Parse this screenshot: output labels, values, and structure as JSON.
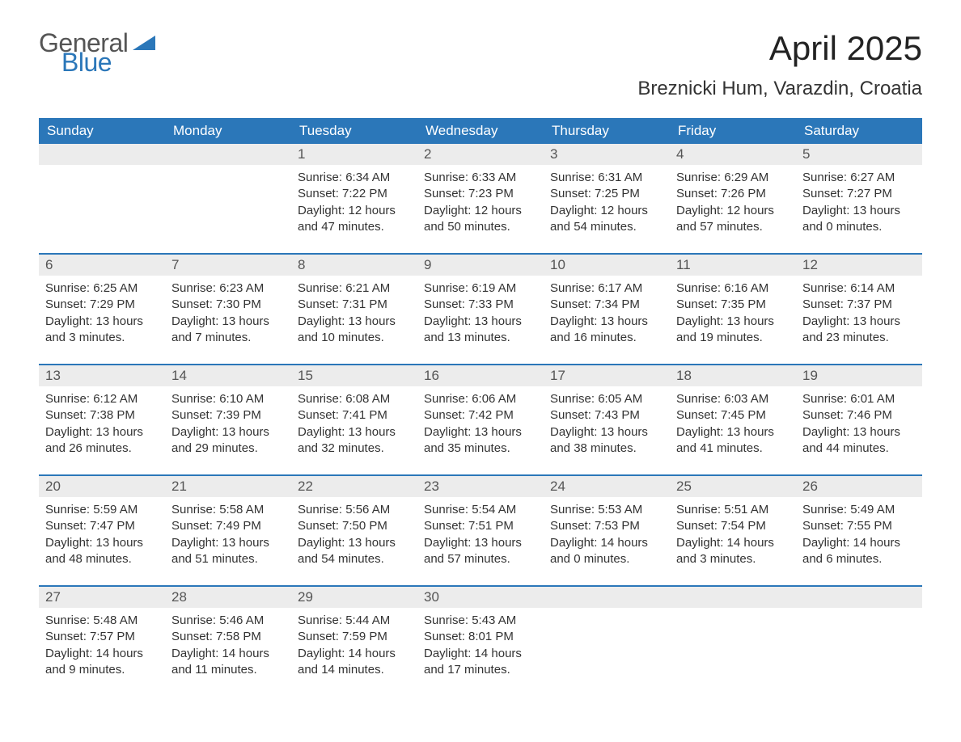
{
  "brand": {
    "word1": "General",
    "word2": "Blue"
  },
  "title": "April 2025",
  "location": "Breznicki Hum, Varazdin, Croatia",
  "colors": {
    "header_bg": "#2b77b9",
    "header_text": "#ffffff",
    "daynum_bg": "#ececec",
    "border_top": "#2b77b9",
    "body_text": "#333333",
    "title_text": "#222222",
    "brand_gray": "#555555",
    "brand_blue": "#2b77b9",
    "page_bg": "#ffffff"
  },
  "typography": {
    "title_fontsize": 42,
    "location_fontsize": 24,
    "dayheader_fontsize": 17,
    "daynum_fontsize": 17,
    "cell_fontsize": 15,
    "logo_fontsize": 32
  },
  "day_headers": [
    "Sunday",
    "Monday",
    "Tuesday",
    "Wednesday",
    "Thursday",
    "Friday",
    "Saturday"
  ],
  "weeks": [
    [
      {
        "n": "",
        "sunrise": "",
        "sunset": "",
        "daylight": ""
      },
      {
        "n": "",
        "sunrise": "",
        "sunset": "",
        "daylight": ""
      },
      {
        "n": "1",
        "sunrise": "Sunrise: 6:34 AM",
        "sunset": "Sunset: 7:22 PM",
        "daylight": "Daylight: 12 hours and 47 minutes."
      },
      {
        "n": "2",
        "sunrise": "Sunrise: 6:33 AM",
        "sunset": "Sunset: 7:23 PM",
        "daylight": "Daylight: 12 hours and 50 minutes."
      },
      {
        "n": "3",
        "sunrise": "Sunrise: 6:31 AM",
        "sunset": "Sunset: 7:25 PM",
        "daylight": "Daylight: 12 hours and 54 minutes."
      },
      {
        "n": "4",
        "sunrise": "Sunrise: 6:29 AM",
        "sunset": "Sunset: 7:26 PM",
        "daylight": "Daylight: 12 hours and 57 minutes."
      },
      {
        "n": "5",
        "sunrise": "Sunrise: 6:27 AM",
        "sunset": "Sunset: 7:27 PM",
        "daylight": "Daylight: 13 hours and 0 minutes."
      }
    ],
    [
      {
        "n": "6",
        "sunrise": "Sunrise: 6:25 AM",
        "sunset": "Sunset: 7:29 PM",
        "daylight": "Daylight: 13 hours and 3 minutes."
      },
      {
        "n": "7",
        "sunrise": "Sunrise: 6:23 AM",
        "sunset": "Sunset: 7:30 PM",
        "daylight": "Daylight: 13 hours and 7 minutes."
      },
      {
        "n": "8",
        "sunrise": "Sunrise: 6:21 AM",
        "sunset": "Sunset: 7:31 PM",
        "daylight": "Daylight: 13 hours and 10 minutes."
      },
      {
        "n": "9",
        "sunrise": "Sunrise: 6:19 AM",
        "sunset": "Sunset: 7:33 PM",
        "daylight": "Daylight: 13 hours and 13 minutes."
      },
      {
        "n": "10",
        "sunrise": "Sunrise: 6:17 AM",
        "sunset": "Sunset: 7:34 PM",
        "daylight": "Daylight: 13 hours and 16 minutes."
      },
      {
        "n": "11",
        "sunrise": "Sunrise: 6:16 AM",
        "sunset": "Sunset: 7:35 PM",
        "daylight": "Daylight: 13 hours and 19 minutes."
      },
      {
        "n": "12",
        "sunrise": "Sunrise: 6:14 AM",
        "sunset": "Sunset: 7:37 PM",
        "daylight": "Daylight: 13 hours and 23 minutes."
      }
    ],
    [
      {
        "n": "13",
        "sunrise": "Sunrise: 6:12 AM",
        "sunset": "Sunset: 7:38 PM",
        "daylight": "Daylight: 13 hours and 26 minutes."
      },
      {
        "n": "14",
        "sunrise": "Sunrise: 6:10 AM",
        "sunset": "Sunset: 7:39 PM",
        "daylight": "Daylight: 13 hours and 29 minutes."
      },
      {
        "n": "15",
        "sunrise": "Sunrise: 6:08 AM",
        "sunset": "Sunset: 7:41 PM",
        "daylight": "Daylight: 13 hours and 32 minutes."
      },
      {
        "n": "16",
        "sunrise": "Sunrise: 6:06 AM",
        "sunset": "Sunset: 7:42 PM",
        "daylight": "Daylight: 13 hours and 35 minutes."
      },
      {
        "n": "17",
        "sunrise": "Sunrise: 6:05 AM",
        "sunset": "Sunset: 7:43 PM",
        "daylight": "Daylight: 13 hours and 38 minutes."
      },
      {
        "n": "18",
        "sunrise": "Sunrise: 6:03 AM",
        "sunset": "Sunset: 7:45 PM",
        "daylight": "Daylight: 13 hours and 41 minutes."
      },
      {
        "n": "19",
        "sunrise": "Sunrise: 6:01 AM",
        "sunset": "Sunset: 7:46 PM",
        "daylight": "Daylight: 13 hours and 44 minutes."
      }
    ],
    [
      {
        "n": "20",
        "sunrise": "Sunrise: 5:59 AM",
        "sunset": "Sunset: 7:47 PM",
        "daylight": "Daylight: 13 hours and 48 minutes."
      },
      {
        "n": "21",
        "sunrise": "Sunrise: 5:58 AM",
        "sunset": "Sunset: 7:49 PM",
        "daylight": "Daylight: 13 hours and 51 minutes."
      },
      {
        "n": "22",
        "sunrise": "Sunrise: 5:56 AM",
        "sunset": "Sunset: 7:50 PM",
        "daylight": "Daylight: 13 hours and 54 minutes."
      },
      {
        "n": "23",
        "sunrise": "Sunrise: 5:54 AM",
        "sunset": "Sunset: 7:51 PM",
        "daylight": "Daylight: 13 hours and 57 minutes."
      },
      {
        "n": "24",
        "sunrise": "Sunrise: 5:53 AM",
        "sunset": "Sunset: 7:53 PM",
        "daylight": "Daylight: 14 hours and 0 minutes."
      },
      {
        "n": "25",
        "sunrise": "Sunrise: 5:51 AM",
        "sunset": "Sunset: 7:54 PM",
        "daylight": "Daylight: 14 hours and 3 minutes."
      },
      {
        "n": "26",
        "sunrise": "Sunrise: 5:49 AM",
        "sunset": "Sunset: 7:55 PM",
        "daylight": "Daylight: 14 hours and 6 minutes."
      }
    ],
    [
      {
        "n": "27",
        "sunrise": "Sunrise: 5:48 AM",
        "sunset": "Sunset: 7:57 PM",
        "daylight": "Daylight: 14 hours and 9 minutes."
      },
      {
        "n": "28",
        "sunrise": "Sunrise: 5:46 AM",
        "sunset": "Sunset: 7:58 PM",
        "daylight": "Daylight: 14 hours and 11 minutes."
      },
      {
        "n": "29",
        "sunrise": "Sunrise: 5:44 AM",
        "sunset": "Sunset: 7:59 PM",
        "daylight": "Daylight: 14 hours and 14 minutes."
      },
      {
        "n": "30",
        "sunrise": "Sunrise: 5:43 AM",
        "sunset": "Sunset: 8:01 PM",
        "daylight": "Daylight: 14 hours and 17 minutes."
      },
      {
        "n": "",
        "sunrise": "",
        "sunset": "",
        "daylight": ""
      },
      {
        "n": "",
        "sunrise": "",
        "sunset": "",
        "daylight": ""
      },
      {
        "n": "",
        "sunrise": "",
        "sunset": "",
        "daylight": ""
      }
    ]
  ]
}
